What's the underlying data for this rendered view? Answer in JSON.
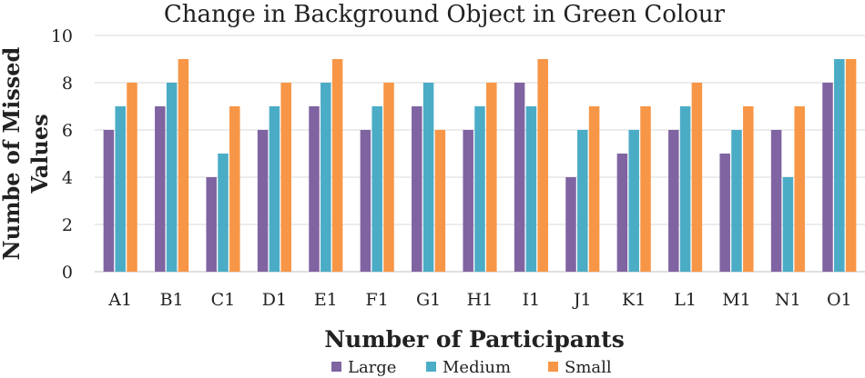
{
  "chart_data": {
    "type": "bar",
    "title": "Change in Background Object in Green Colour",
    "xlabel": "Number of Participants",
    "ylabel": "Numbe of Missed Values",
    "ylim": [
      0,
      10
    ],
    "yticks": [
      0,
      2,
      4,
      6,
      8,
      10
    ],
    "grid": true,
    "legend_position": "bottom",
    "categories": [
      "A1",
      "B1",
      "C1",
      "D1",
      "E1",
      "F1",
      "G1",
      "H1",
      "I1",
      "J1",
      "K1",
      "L1",
      "M1",
      "N1",
      "O1"
    ],
    "series": [
      {
        "name": "Large",
        "color": "#8064a2",
        "values": [
          6,
          7,
          4,
          6,
          7,
          6,
          7,
          6,
          8,
          4,
          5,
          6,
          5,
          6,
          8
        ]
      },
      {
        "name": "Medium",
        "color": "#4bacc6",
        "values": [
          7,
          8,
          5,
          7,
          8,
          7,
          8,
          7,
          7,
          6,
          6,
          7,
          6,
          4,
          9
        ]
      },
      {
        "name": "Small",
        "color": "#f79646",
        "values": [
          8,
          9,
          7,
          8,
          9,
          8,
          6,
          8,
          9,
          7,
          7,
          8,
          7,
          7,
          9
        ]
      }
    ]
  }
}
